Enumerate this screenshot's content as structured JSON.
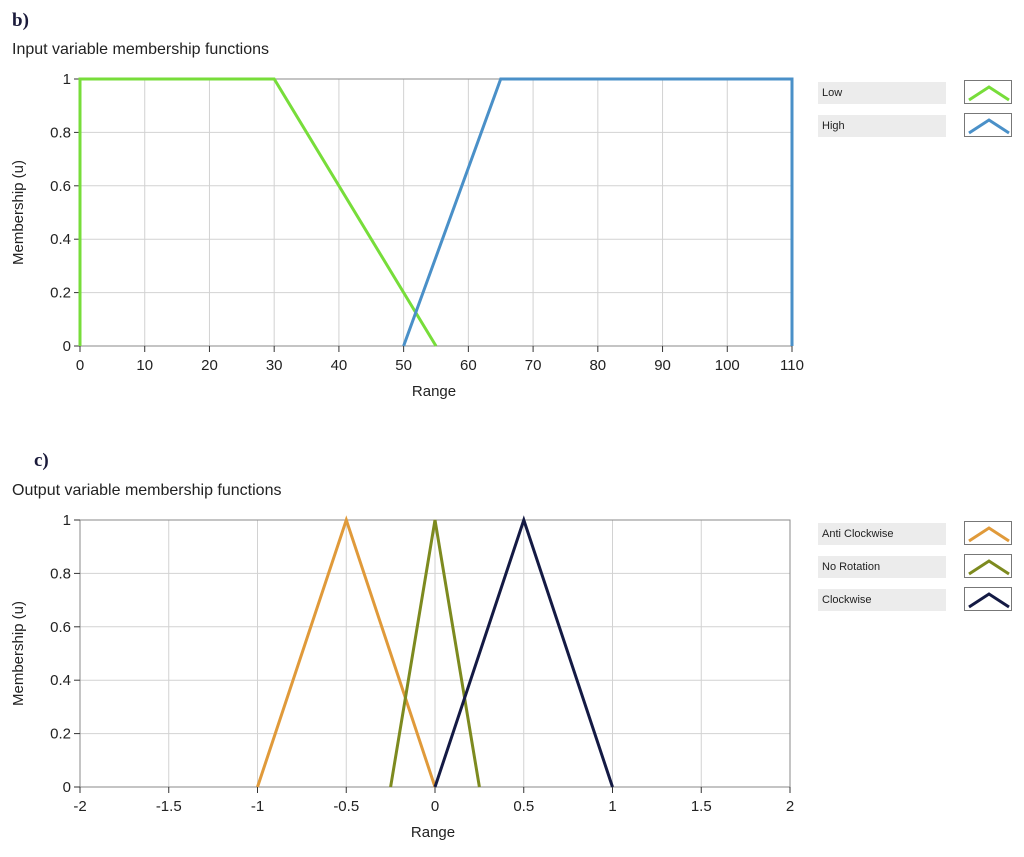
{
  "panels": [
    {
      "letter": "b)",
      "title": "Input variable membership functions",
      "legend": [
        "Low",
        "High"
      ]
    },
    {
      "letter": "c)",
      "title": "Output variable membership functions",
      "legend": [
        "Anti Clockwise",
        "No Rotation",
        "Clockwise"
      ]
    }
  ],
  "chart_data": [
    {
      "type": "line",
      "title": "Input variable membership functions",
      "xlabel": "Range",
      "ylabel": "Membership (u)",
      "xlim": [
        0,
        110
      ],
      "ylim": [
        0,
        1
      ],
      "xticks": [
        0,
        10,
        20,
        30,
        40,
        50,
        60,
        70,
        80,
        90,
        100,
        110
      ],
      "yticks": [
        0,
        0.2,
        0.4,
        0.6,
        0.8,
        1
      ],
      "grid": true,
      "legend_position": "right",
      "series": [
        {
          "name": "Low",
          "color": "#77dd3a",
          "x": [
            0,
            0,
            30,
            55
          ],
          "y": [
            0,
            1,
            1,
            0
          ]
        },
        {
          "name": "High",
          "color": "#4a90c8",
          "x": [
            50,
            65,
            110,
            110
          ],
          "y": [
            0,
            1,
            1,
            0
          ]
        }
      ]
    },
    {
      "type": "line",
      "title": "Output variable membership functions",
      "xlabel": "Range",
      "ylabel": "Membership (u)",
      "xlim": [
        -2,
        2
      ],
      "ylim": [
        0,
        1
      ],
      "xticks": [
        -2,
        -1.5,
        -1,
        -0.5,
        0,
        0.5,
        1,
        1.5,
        2
      ],
      "yticks": [
        0,
        0.2,
        0.4,
        0.6,
        0.8,
        1
      ],
      "grid": true,
      "legend_position": "right",
      "series": [
        {
          "name": "Anti Clockwise",
          "color": "#e09a3a",
          "x": [
            -1,
            -0.5,
            0
          ],
          "y": [
            0,
            1,
            0
          ]
        },
        {
          "name": "No Rotation",
          "color": "#7d8a1f",
          "x": [
            -0.25,
            0,
            0.25
          ],
          "y": [
            0,
            1,
            0
          ]
        },
        {
          "name": "Clockwise",
          "color": "#141a44",
          "x": [
            0,
            0.5,
            1
          ],
          "y": [
            0,
            1,
            0
          ]
        }
      ]
    }
  ]
}
